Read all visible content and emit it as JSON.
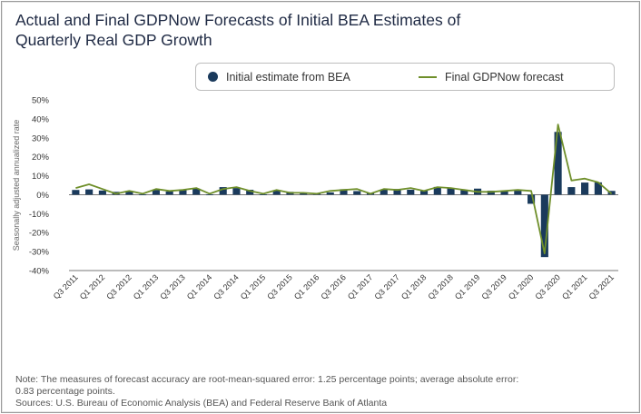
{
  "title_line1": "Actual and Final GDPNow Forecasts of Initial BEA Estimates of",
  "title_line2": "Quarterly Real GDP Growth",
  "legend": {
    "bar_label": "Initial estimate from BEA",
    "line_label": "Final GDPNow forecast"
  },
  "footer": {
    "note_line1": "Note: The measures of forecast accuracy are root-mean-squared error: 1.25 percentage points; average absolute error:",
    "note_line2": "0.83 percentage points.",
    "sources": "Sources: U.S. Bureau of Economic Analysis (BEA) and Federal Reserve Bank of Atlanta"
  },
  "colors": {
    "bar": "#1a3a5c",
    "line": "#6f8f2a",
    "axis": "#555555",
    "text": "#333333"
  },
  "chart_data": {
    "type": "bar",
    "ylabel": "Seasonally adjusted annualized rate",
    "ylim": [
      -40,
      50
    ],
    "yticks": [
      -40,
      -30,
      -20,
      -10,
      0,
      10,
      20,
      30,
      40,
      50
    ],
    "ytick_labels": [
      "-40%",
      "-30%",
      "-20%",
      "-10%",
      "0%",
      "10%",
      "20%",
      "30%",
      "40%",
      "50%"
    ],
    "categories": [
      "Q3 2011",
      "Q4 2011",
      "Q1 2012",
      "Q2 2012",
      "Q3 2012",
      "Q4 2012",
      "Q1 2013",
      "Q2 2013",
      "Q3 2013",
      "Q4 2013",
      "Q1 2014",
      "Q2 2014",
      "Q3 2014",
      "Q4 2014",
      "Q1 2015",
      "Q2 2015",
      "Q3 2015",
      "Q4 2015",
      "Q1 2016",
      "Q2 2016",
      "Q3 2016",
      "Q4 2016",
      "Q1 2017",
      "Q2 2017",
      "Q3 2017",
      "Q4 2017",
      "Q1 2018",
      "Q2 2018",
      "Q3 2018",
      "Q4 2018",
      "Q1 2019",
      "Q2 2019",
      "Q3 2019",
      "Q4 2019",
      "Q1 2020",
      "Q2 2020",
      "Q3 2020",
      "Q4 2020",
      "Q1 2021",
      "Q2 2021",
      "Q3 2021"
    ],
    "xtick_labels": [
      "Q3 2011",
      "Q1 2012",
      "Q3 2012",
      "Q1 2013",
      "Q3 2013",
      "Q1 2014",
      "Q3 2014",
      "Q1 2015",
      "Q3 2015",
      "Q1 2016",
      "Q3 2016",
      "Q1 2017",
      "Q3 2017",
      "Q1 2018",
      "Q3 2018",
      "Q1 2019",
      "Q3 2019",
      "Q1 2020",
      "Q3 2020",
      "Q1 2021",
      "Q3 2021"
    ],
    "grid": false,
    "legend_position": "top",
    "series": [
      {
        "name": "Initial estimate from BEA",
        "type": "bar",
        "values": [
          2.5,
          2.8,
          2.2,
          1.5,
          2.0,
          0.1,
          2.5,
          1.7,
          2.8,
          3.2,
          0.1,
          4.0,
          3.5,
          2.6,
          0.2,
          2.3,
          1.5,
          0.7,
          0.5,
          1.2,
          2.9,
          1.9,
          0.7,
          2.6,
          3.0,
          2.6,
          2.3,
          4.1,
          3.5,
          2.6,
          3.2,
          2.1,
          1.9,
          2.1,
          -4.8,
          -32.9,
          33.1,
          4.0,
          6.4,
          6.5,
          2.0
        ]
      },
      {
        "name": "Final GDPNow forecast",
        "type": "line",
        "values": [
          3.5,
          5.5,
          3.0,
          0.5,
          2.0,
          0.5,
          3.0,
          2.0,
          2.5,
          3.5,
          0.5,
          3.0,
          4.0,
          2.0,
          0.5,
          2.5,
          1.0,
          1.0,
          0.5,
          2.0,
          2.5,
          3.0,
          0.5,
          3.0,
          2.5,
          3.5,
          2.0,
          4.0,
          3.5,
          2.5,
          1.5,
          1.5,
          2.0,
          2.5,
          2.0,
          -31.0,
          37.0,
          7.5,
          8.5,
          6.5,
          0.5
        ]
      }
    ]
  }
}
